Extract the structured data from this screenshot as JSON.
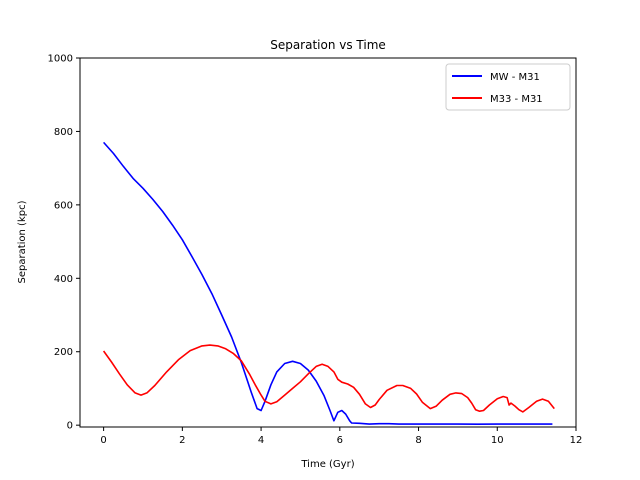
{
  "chart_data": {
    "type": "line",
    "title": "Separation vs Time",
    "xlabel": "Time (Gyr)",
    "ylabel": "Separation (kpc)",
    "xlim": [
      -0.6,
      12
    ],
    "ylim": [
      -5,
      1000
    ],
    "xticks": [
      0,
      2,
      4,
      6,
      8,
      10,
      12
    ],
    "yticks": [
      0,
      200,
      400,
      600,
      800,
      1000
    ],
    "grid": false,
    "legend_position": "top-right",
    "series": [
      {
        "name": "MW - M31",
        "color": "#0000ff",
        "points": [
          [
            0,
            770
          ],
          [
            0.25,
            740
          ],
          [
            0.5,
            705
          ],
          [
            0.75,
            672
          ],
          [
            1.0,
            645
          ],
          [
            1.25,
            615
          ],
          [
            1.5,
            582
          ],
          [
            1.75,
            545
          ],
          [
            2.0,
            505
          ],
          [
            2.25,
            458
          ],
          [
            2.5,
            410
          ],
          [
            2.75,
            358
          ],
          [
            3.0,
            300
          ],
          [
            3.25,
            240
          ],
          [
            3.5,
            170
          ],
          [
            3.75,
            90
          ],
          [
            3.9,
            45
          ],
          [
            4.0,
            40
          ],
          [
            4.1,
            65
          ],
          [
            4.25,
            110
          ],
          [
            4.4,
            145
          ],
          [
            4.6,
            168
          ],
          [
            4.8,
            174
          ],
          [
            5.0,
            168
          ],
          [
            5.2,
            150
          ],
          [
            5.4,
            120
          ],
          [
            5.6,
            80
          ],
          [
            5.75,
            40
          ],
          [
            5.85,
            12
          ],
          [
            5.95,
            35
          ],
          [
            6.05,
            40
          ],
          [
            6.15,
            30
          ],
          [
            6.25,
            12
          ],
          [
            6.3,
            6
          ],
          [
            6.5,
            5
          ],
          [
            6.75,
            3
          ],
          [
            7.0,
            4
          ],
          [
            7.25,
            4
          ],
          [
            7.5,
            3
          ],
          [
            7.75,
            3
          ],
          [
            8.0,
            3
          ],
          [
            8.5,
            3
          ],
          [
            9.0,
            3
          ],
          [
            9.5,
            2.5
          ],
          [
            10.0,
            3
          ],
          [
            10.5,
            3
          ],
          [
            11.0,
            3
          ],
          [
            11.4,
            3
          ]
        ]
      },
      {
        "name": "M33 - M31",
        "color": "#ff0000",
        "points": [
          [
            0,
            202
          ],
          [
            0.2,
            172
          ],
          [
            0.4,
            140
          ],
          [
            0.6,
            110
          ],
          [
            0.8,
            88
          ],
          [
            0.95,
            82
          ],
          [
            1.1,
            88
          ],
          [
            1.3,
            108
          ],
          [
            1.6,
            145
          ],
          [
            1.9,
            178
          ],
          [
            2.2,
            203
          ],
          [
            2.5,
            216
          ],
          [
            2.7,
            218
          ],
          [
            2.9,
            216
          ],
          [
            3.1,
            208
          ],
          [
            3.3,
            195
          ],
          [
            3.5,
            175
          ],
          [
            3.7,
            140
          ],
          [
            3.85,
            110
          ],
          [
            4.0,
            82
          ],
          [
            4.1,
            65
          ],
          [
            4.25,
            58
          ],
          [
            4.4,
            64
          ],
          [
            4.6,
            82
          ],
          [
            4.8,
            100
          ],
          [
            5.0,
            118
          ],
          [
            5.2,
            140
          ],
          [
            5.4,
            160
          ],
          [
            5.55,
            166
          ],
          [
            5.7,
            160
          ],
          [
            5.85,
            145
          ],
          [
            5.95,
            125
          ],
          [
            6.05,
            117
          ],
          [
            6.2,
            112
          ],
          [
            6.35,
            103
          ],
          [
            6.5,
            84
          ],
          [
            6.65,
            58
          ],
          [
            6.78,
            48
          ],
          [
            6.9,
            55
          ],
          [
            7.0,
            70
          ],
          [
            7.2,
            95
          ],
          [
            7.45,
            108
          ],
          [
            7.6,
            108
          ],
          [
            7.8,
            100
          ],
          [
            7.95,
            85
          ],
          [
            8.1,
            62
          ],
          [
            8.3,
            45
          ],
          [
            8.45,
            52
          ],
          [
            8.6,
            68
          ],
          [
            8.8,
            84
          ],
          [
            8.95,
            88
          ],
          [
            9.1,
            86
          ],
          [
            9.25,
            75
          ],
          [
            9.35,
            60
          ],
          [
            9.45,
            42
          ],
          [
            9.55,
            38
          ],
          [
            9.65,
            40
          ],
          [
            9.8,
            55
          ],
          [
            10.0,
            72
          ],
          [
            10.15,
            78
          ],
          [
            10.25,
            75
          ],
          [
            10.3,
            55
          ],
          [
            10.35,
            60
          ],
          [
            10.45,
            52
          ],
          [
            10.55,
            42
          ],
          [
            10.65,
            36
          ],
          [
            10.8,
            48
          ],
          [
            11.0,
            65
          ],
          [
            11.15,
            71
          ],
          [
            11.3,
            65
          ],
          [
            11.45,
            45
          ]
        ]
      }
    ]
  }
}
